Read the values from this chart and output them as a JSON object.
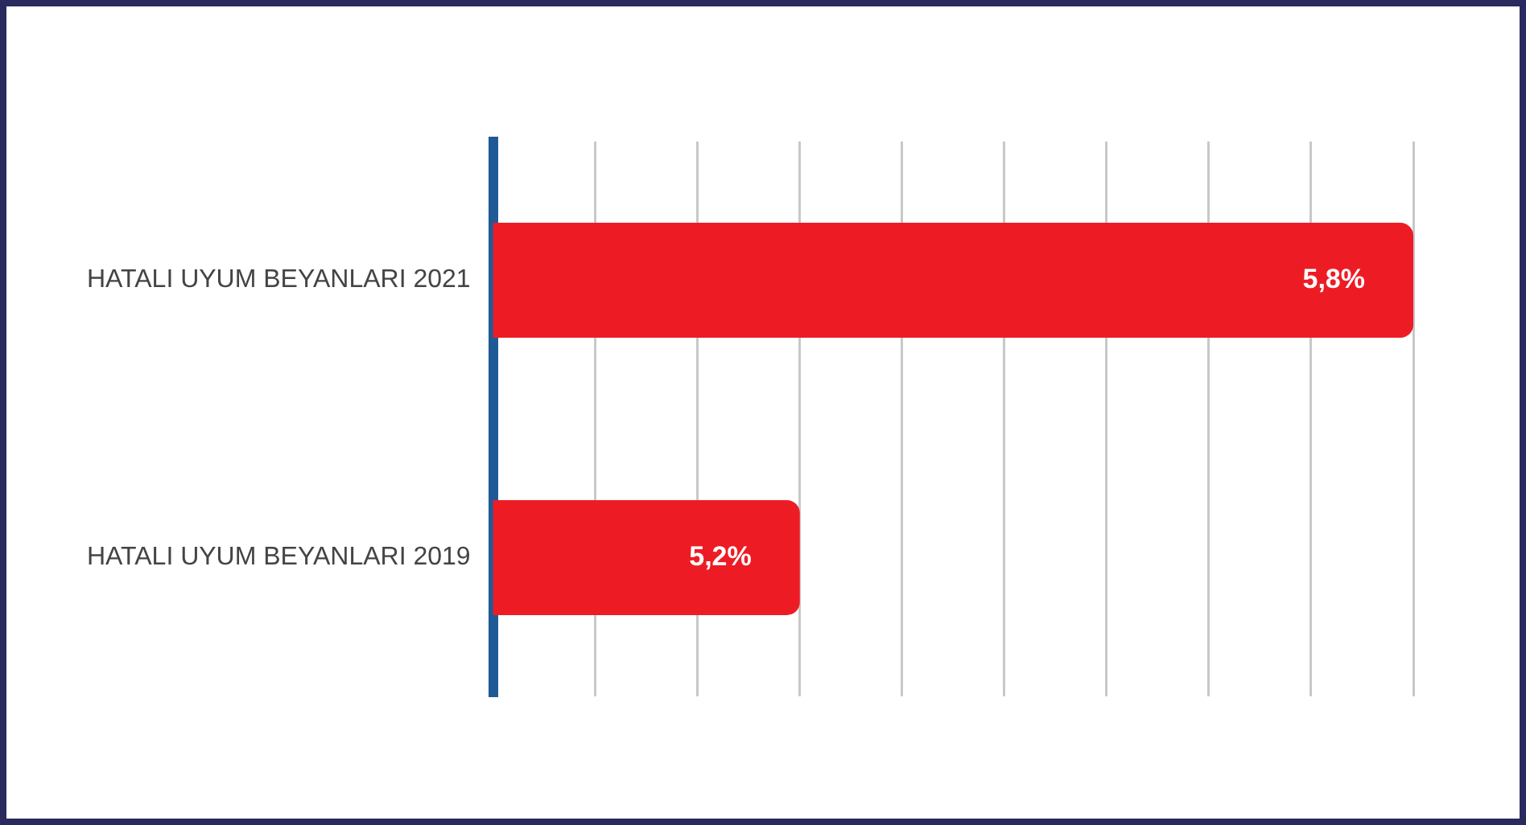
{
  "chart_data": {
    "type": "bar",
    "orientation": "horizontal",
    "categories": [
      "HATALI UYUM BEYANLARI 2021",
      "HATALI UYUM BEYANLARI 2019"
    ],
    "values": [
      5.8,
      5.2
    ],
    "color": "#ed1c24",
    "value_labels": [
      "5,8%",
      "5,2%"
    ],
    "xlim": [
      4.9,
      5.8
    ],
    "xticks": [
      {
        "value": 5.0,
        "label": null
      },
      {
        "value": 5.1,
        "label": null
      },
      {
        "value": 5.2,
        "label": null
      },
      {
        "value": 5.3,
        "label": null
      },
      {
        "value": 5.4,
        "label": null
      },
      {
        "value": 5.5,
        "label": null
      },
      {
        "value": 5.6,
        "label": null
      },
      {
        "value": 5.7,
        "label": null
      },
      {
        "value": 5.8,
        "label": null
      }
    ],
    "grid": "x",
    "tick_labels": "y"
  }
}
